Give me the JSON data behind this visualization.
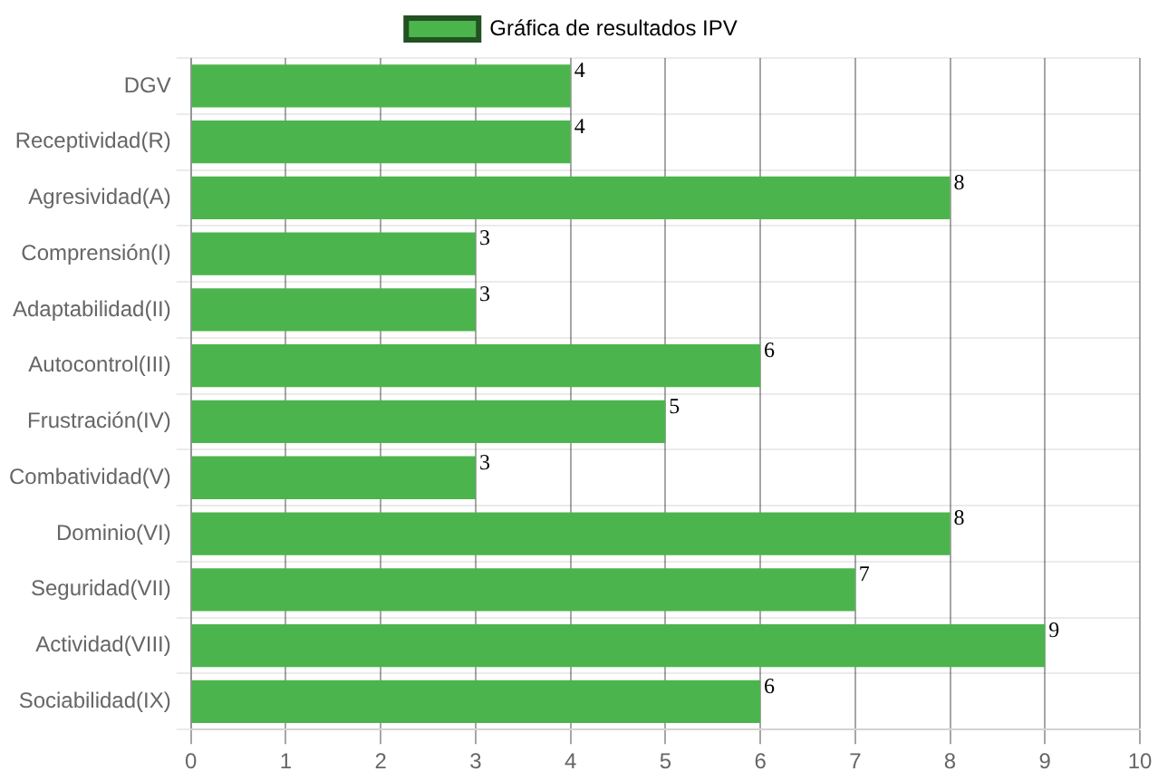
{
  "chart_data": {
    "type": "bar",
    "orientation": "horizontal",
    "categories": [
      "DGV",
      "Receptividad(R)",
      "Agresividad(A)",
      "Comprensión(I)",
      "Adaptabilidad(II)",
      "Autocontrol(III)",
      "Frustración(IV)",
      "Combatividad(V)",
      "Dominio(VI)",
      "Seguridad(VII)",
      "Actividad(VIII)",
      "Sociabilidad(IX)"
    ],
    "series": [
      {
        "name": "Gráfica de resultados IPV",
        "color": "#4cb44c",
        "values": [
          4,
          4,
          8,
          3,
          3,
          6,
          5,
          3,
          8,
          7,
          9,
          6
        ]
      }
    ],
    "xlim": [
      0,
      10
    ],
    "xticks": [
      0,
      1,
      2,
      3,
      4,
      5,
      6,
      7,
      8,
      9,
      10
    ],
    "grid": true,
    "legend": "top",
    "data_labels": true
  }
}
